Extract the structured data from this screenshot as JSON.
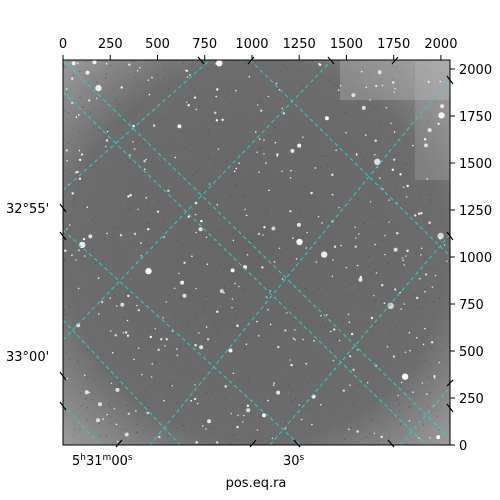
{
  "image": {
    "description_type": "astronomical star field with world coordinate grid",
    "colors": {
      "background_sky": "#6a6a6a",
      "star": "#ffffff",
      "grid": "#22d3d3",
      "axis": "#000000"
    }
  },
  "pixel_axes": {
    "top_ticks": [
      "0",
      "250",
      "500",
      "750",
      "1000",
      "1250",
      "1500",
      "1750",
      "2000"
    ],
    "right_ticks": [
      "0",
      "250",
      "500",
      "750",
      "1000",
      "1250",
      "1500",
      "1750",
      "2000"
    ],
    "x_range": [
      0,
      2048
    ],
    "y_range": [
      0,
      2048
    ]
  },
  "world_axes": {
    "dec_labels": [
      "32°55'",
      "33°00'"
    ],
    "ra_labels": [
      "5h31m00s",
      "30s"
    ],
    "ra_label_parts": [
      {
        "h": "5",
        "m": "31",
        "s": "00"
      },
      {
        "s": "30"
      }
    ],
    "xlabel": "pos.eq.ra"
  }
}
